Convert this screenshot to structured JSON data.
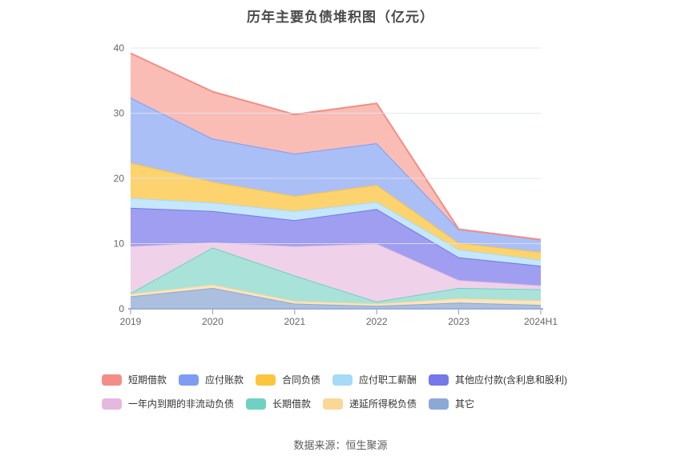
{
  "title": "历年主要负债堆积图（亿元）",
  "source": "数据来源：恒生聚源",
  "chart_data": {
    "type": "area",
    "stacked": true,
    "title": "历年主要负债堆积图（亿元）",
    "x": [
      "2019",
      "2020",
      "2021",
      "2022",
      "2023",
      "2024H1"
    ],
    "ylim": [
      0,
      40
    ],
    "yticks": [
      0,
      10,
      20,
      30,
      40
    ],
    "grid": "horizontal",
    "legend_position": "bottom",
    "axis_label_color": "#666666",
    "gridline_color": "#dde4f2",
    "axis_line_color": "#9db0d6",
    "tick_color": "#999999",
    "series": [
      {
        "name": "短期借款",
        "color": "#f28e86",
        "fill": "#fabdb6",
        "values": [
          6.8,
          7.2,
          6.0,
          6.1,
          0.0,
          0.0
        ]
      },
      {
        "name": "应付账款",
        "color": "#7e9df2",
        "fill": "#abbff7",
        "values": [
          10.0,
          6.6,
          6.5,
          6.4,
          2.1,
          1.9
        ]
      },
      {
        "name": "合同负债",
        "color": "#fbc53e",
        "fill": "#fdd36f",
        "values": [
          5.4,
          3.2,
          2.3,
          2.6,
          1.0,
          1.2
        ]
      },
      {
        "name": "应付职工薪酬",
        "color": "#a6daf7",
        "fill": "#c4e7fb",
        "values": [
          1.5,
          1.3,
          1.4,
          1.1,
          1.2,
          0.9
        ]
      },
      {
        "name": "其他应付款(含利息和股利)",
        "color": "#7478e8",
        "fill": "#a09ef1",
        "values": [
          5.9,
          4.8,
          4.0,
          5.3,
          3.5,
          3.0
        ]
      },
      {
        "name": "一年内到期的非流动负债",
        "color": "#e4b8df",
        "fill": "#efd2e9",
        "values": [
          7.2,
          0.8,
          4.5,
          8.9,
          1.2,
          0.6
        ]
      },
      {
        "name": "长期借款",
        "color": "#70d0c4",
        "fill": "#a9e2d9",
        "values": [
          0.1,
          5.7,
          3.9,
          0.3,
          1.6,
          1.7
        ]
      },
      {
        "name": "递延所得税负债",
        "color": "#fad795",
        "fill": "#fce5be",
        "values": [
          0.4,
          0.5,
          0.4,
          0.35,
          0.65,
          0.7
        ]
      },
      {
        "name": "其它",
        "color": "#8ca9d6",
        "fill": "#acbfdf",
        "values": [
          1.9,
          3.2,
          0.8,
          0.45,
          0.95,
          0.6
        ]
      }
    ]
  }
}
